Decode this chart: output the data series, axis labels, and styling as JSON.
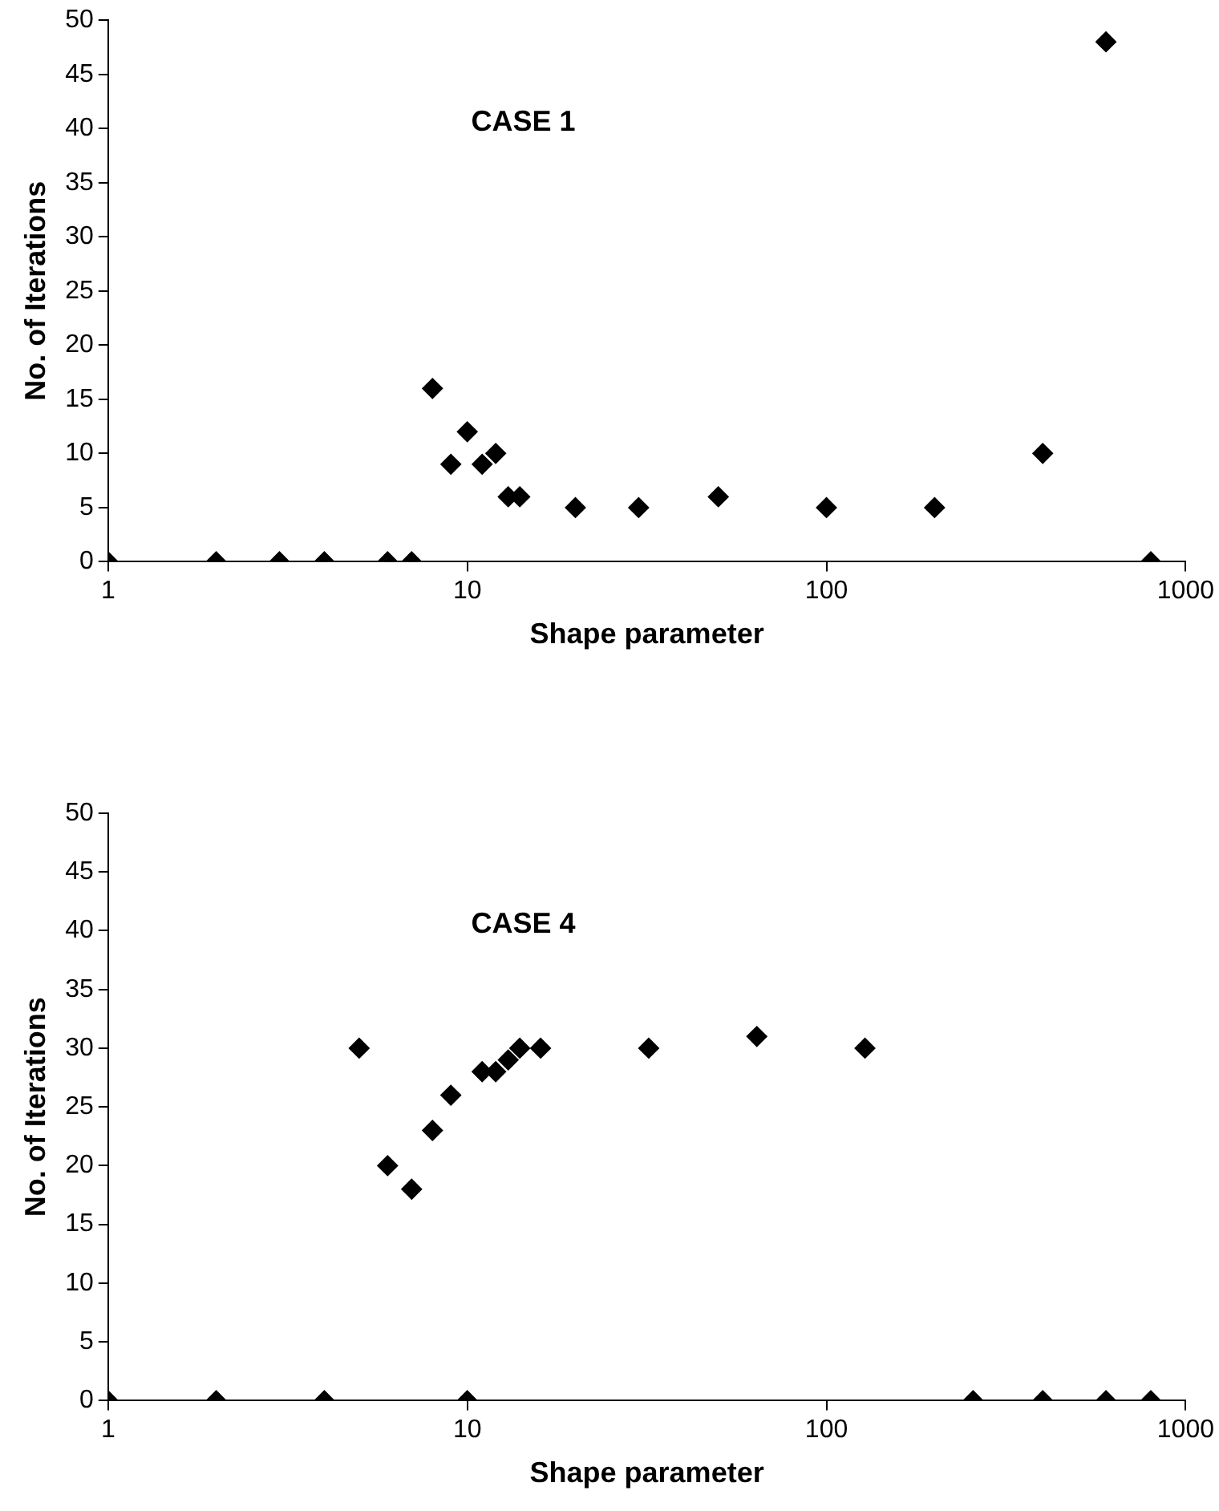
{
  "chart_data": [
    {
      "type": "scatter",
      "xlabel": "Shape parameter",
      "ylabel": "No. of Iterations",
      "annotations": [
        "CASE 1"
      ],
      "x": [
        1,
        2,
        3,
        4,
        6,
        7,
        8,
        9,
        10,
        11,
        12,
        13,
        14,
        20,
        30,
        50,
        100,
        200,
        400,
        600,
        800
      ],
      "values": [
        0,
        0,
        0,
        0,
        0,
        0,
        16,
        9,
        12,
        9,
        10,
        6,
        6,
        5,
        5,
        6,
        5,
        5,
        10,
        48,
        0
      ],
      "color": "#000000",
      "marker": "diamond",
      "log": "x",
      "grid": false,
      "legend": false,
      "xlim": [
        1,
        1000
      ],
      "xticks": [
        1,
        10,
        100,
        1000
      ],
      "ylim": [
        0,
        50
      ],
      "yticks": [
        0,
        5,
        10,
        15,
        20,
        25,
        30,
        35,
        40,
        45,
        50
      ]
    },
    {
      "type": "scatter",
      "xlabel": "Shape parameter",
      "ylabel": "No. of Iterations",
      "annotations": [
        "CASE 4"
      ],
      "x": [
        1,
        2,
        4,
        5,
        6,
        7,
        8,
        9,
        10,
        11,
        12,
        13,
        14,
        16,
        32,
        64,
        128,
        256,
        400,
        600,
        800
      ],
      "values": [
        0,
        0,
        0,
        30,
        20,
        18,
        23,
        26,
        0,
        28,
        28,
        29,
        30,
        30,
        30,
        31,
        30,
        0,
        0,
        0,
        0
      ],
      "color": "#000000",
      "marker": "diamond",
      "log": "x",
      "grid": false,
      "legend": false,
      "xlim": [
        1,
        1000
      ],
      "xticks": [
        1,
        10,
        100,
        1000
      ],
      "ylim": [
        0,
        50
      ],
      "yticks": [
        0,
        5,
        10,
        15,
        20,
        25,
        30,
        35,
        40,
        45,
        50
      ]
    }
  ]
}
